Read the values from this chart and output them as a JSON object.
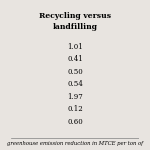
{
  "title_line1": "Recycling versus",
  "title_line2": "landfilling",
  "values": [
    "1.01",
    "0.41",
    "0.50",
    "0.54",
    "1.97",
    "0.12",
    "0.60"
  ],
  "footer": "greenhouse emission reduction in MTCE per ton of",
  "bg_color": "#e8e4e0",
  "title_fontsize": 5.5,
  "value_fontsize": 5.0,
  "footer_fontsize": 3.8
}
